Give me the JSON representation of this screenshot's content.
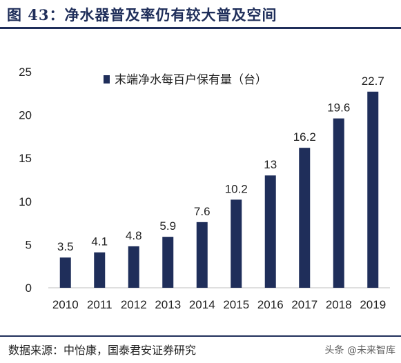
{
  "figure": {
    "title": "图 43：净水器普及率仍有较大普及空间",
    "source": "数据来源：中怡康，国泰君安证券研究",
    "watermark": "头条 @未来智库"
  },
  "colors": {
    "bar": "#1f2e5a",
    "accent": "#1f2e5a"
  },
  "chart_data": {
    "type": "bar",
    "categories": [
      "2010",
      "2011",
      "2012",
      "2013",
      "2014",
      "2015",
      "2016",
      "2017",
      "2018",
      "2019"
    ],
    "series": [
      {
        "name": "末端净水每百户保有量（台）",
        "values": [
          3.5,
          4.1,
          4.8,
          5.9,
          7.6,
          10.2,
          13,
          16.2,
          19.6,
          22.7
        ]
      }
    ],
    "data_labels": [
      "3.5",
      "4.1",
      "4.8",
      "5.9",
      "7.6",
      "10.2",
      "13",
      "16.2",
      "19.6",
      "22.7"
    ],
    "y_ticks": [
      0,
      5,
      10,
      15,
      20,
      25
    ],
    "ylim": [
      0,
      25
    ],
    "grid": false,
    "legend_position": "top-left"
  }
}
